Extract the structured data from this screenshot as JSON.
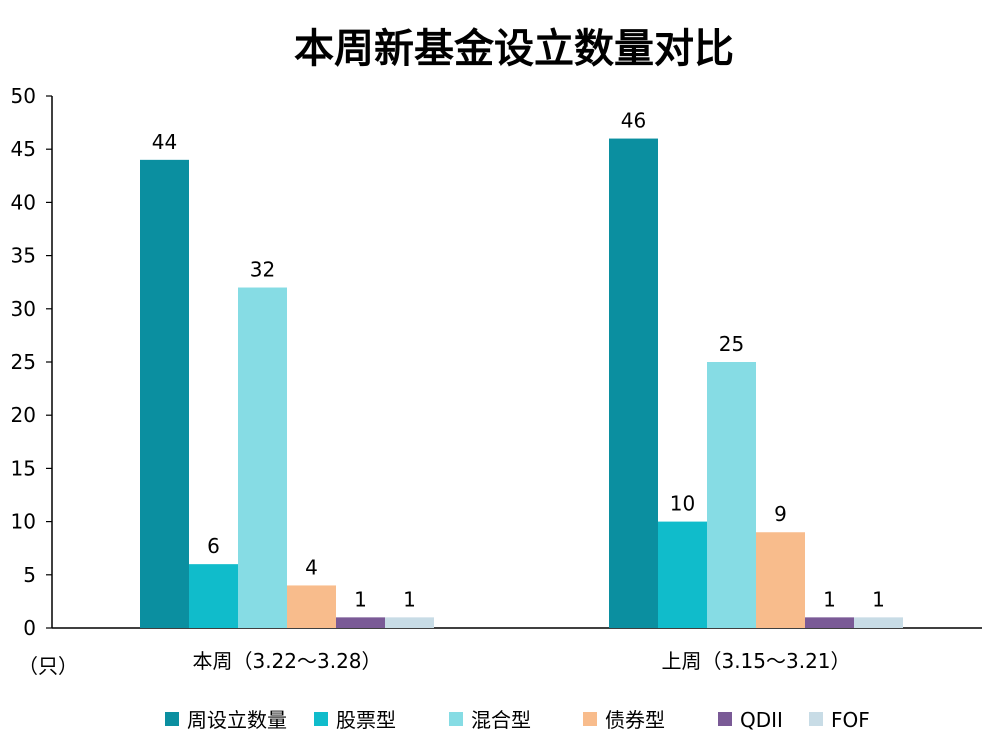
{
  "chart_data": {
    "type": "bar",
    "title": "本周新基金设立数量对比",
    "unit_label": "（只）",
    "categories": [
      "本周（3.22～3.28）",
      "上周（3.15～3.21）"
    ],
    "series": [
      {
        "name": "周设立数量",
        "color": "#0B8FA0",
        "values": [
          44,
          46
        ]
      },
      {
        "name": "股票型",
        "color": "#10BCCB",
        "values": [
          6,
          10
        ]
      },
      {
        "name": "混合型",
        "color": "#86DCE4",
        "values": [
          32,
          25
        ]
      },
      {
        "name": "债券型",
        "color": "#F8BC8C",
        "values": [
          4,
          9
        ]
      },
      {
        "name": "QDII",
        "color": "#7A5A96",
        "values": [
          1,
          1
        ]
      },
      {
        "name": "FOF",
        "color": "#C8DCE6",
        "values": [
          1,
          1
        ]
      }
    ],
    "ylim": [
      0,
      50
    ],
    "yticks": [
      0,
      5,
      10,
      15,
      20,
      25,
      30,
      35,
      40,
      45,
      50
    ],
    "grid": false,
    "legend_position": "bottom"
  }
}
